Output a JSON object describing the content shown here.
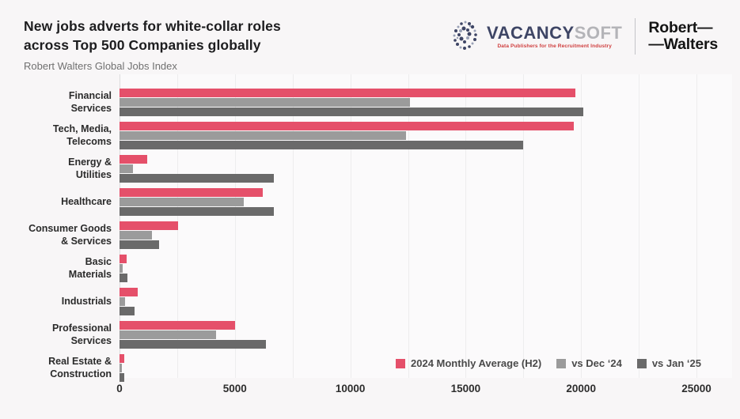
{
  "header": {
    "title_lines": [
      "New jobs adverts for white-collar roles",
      "across Top 500 Companies globally"
    ],
    "subtitle": "Robert Walters Global Jobs Index",
    "logos": {
      "vacancysoft": {
        "word_primary": "VACANCY",
        "word_secondary": "SOFT",
        "tagline": "Data Publishers for the Recruitment Industry"
      },
      "robert_walters": {
        "line1": "Robert—",
        "line2": "—Walters"
      }
    }
  },
  "chart_data": {
    "type": "bar",
    "orientation": "horizontal",
    "title": "New jobs adverts for white-collar roles across Top 500 Companies globally",
    "subtitle": "Robert Walters Global Jobs Index",
    "categories": [
      "Financial Services",
      "Tech, Media, Telecoms",
      "Energy & Utilities",
      "Healthcare",
      "Consumer Goods & Services",
      "Basic Materials",
      "Industrials",
      "Professional Services",
      "Real Estate & Construction"
    ],
    "category_lines": [
      [
        "Financial",
        "Services"
      ],
      [
        "Tech, Media,",
        "Telecoms"
      ],
      [
        "Energy &",
        "Utilities"
      ],
      [
        "Healthcare"
      ],
      [
        "Consumer Goods",
        "& Services"
      ],
      [
        "Basic",
        "Materials"
      ],
      [
        "Industrials"
      ],
      [
        "Professional",
        "Services"
      ],
      [
        "Real Estate &",
        "Construction"
      ]
    ],
    "series": [
      {
        "name": "2024 Monthly Average (H2)",
        "color": "#e5506a",
        "values": [
          19750,
          19700,
          1200,
          6200,
          2550,
          300,
          800,
          5000,
          200
        ]
      },
      {
        "name": "vs Dec ‘24",
        "color": "#9b9b9b",
        "values": [
          12600,
          12400,
          600,
          5400,
          1400,
          150,
          250,
          4200,
          100
        ]
      },
      {
        "name": "vs Jan ‘25",
        "color": "#6a6a6a",
        "values": [
          20100,
          17500,
          6700,
          6700,
          1700,
          350,
          650,
          6350,
          220
        ]
      }
    ],
    "xlim": [
      0,
      25000
    ],
    "x_ticks": [
      "0",
      "5000",
      "10000",
      "15000",
      "20000",
      "25000"
    ],
    "gridline_step": 2500,
    "grid": true,
    "legend_position": "bottom-right",
    "colors": {
      "accent_red": "#e5506a",
      "light_gray": "#9b9b9b",
      "dark_gray": "#6a6a6a",
      "background": "#f8f6f7"
    }
  }
}
